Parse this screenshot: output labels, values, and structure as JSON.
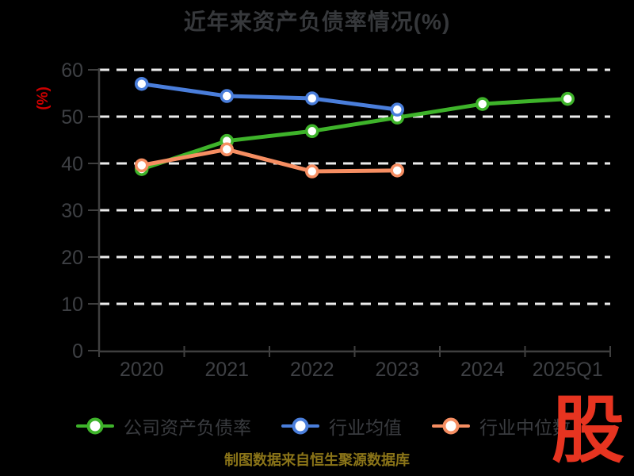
{
  "title": "近年来资产负债率情况(%)",
  "y_axis_name": "(%)",
  "footer": "制图数据来自恒生聚源数据库",
  "logo_text": "股",
  "colors": {
    "background": "#000000",
    "title_text": "#36383b",
    "axis_line": "#3f3f3f",
    "tick_label": "#3e4044",
    "gridline": "#ececec",
    "y_axis_name_red": "#cc0000",
    "footer_gold": "#8a7418",
    "logo_red": "#e73420",
    "legend_label": "#3a3c40"
  },
  "chart_data": {
    "type": "line",
    "categories": [
      "2020",
      "2021",
      "2022",
      "2023",
      "2024",
      "2025Q1"
    ],
    "series": [
      {
        "name": "公司资产负债率",
        "color": "#3eb32a",
        "values": [
          38.8,
          44.8,
          46.9,
          49.8,
          52.7,
          53.8
        ]
      },
      {
        "name": "行业均值",
        "color": "#4a7edb",
        "values": [
          57.0,
          54.4,
          53.9,
          51.5,
          null,
          null
        ]
      },
      {
        "name": "行业中位数",
        "color": "#f68e62",
        "values": [
          39.6,
          43.0,
          38.3,
          38.5,
          null,
          null
        ]
      }
    ],
    "title": "近年来资产负债率情况(%)",
    "xlabel": "",
    "ylabel": "(%)",
    "ylim": [
      0,
      60
    ],
    "y_ticks": [
      0,
      10,
      20,
      30,
      40,
      50,
      60
    ],
    "grid": "horizontal-dashed-white",
    "legend_position": "bottom",
    "marker": "white-filled-circle"
  }
}
